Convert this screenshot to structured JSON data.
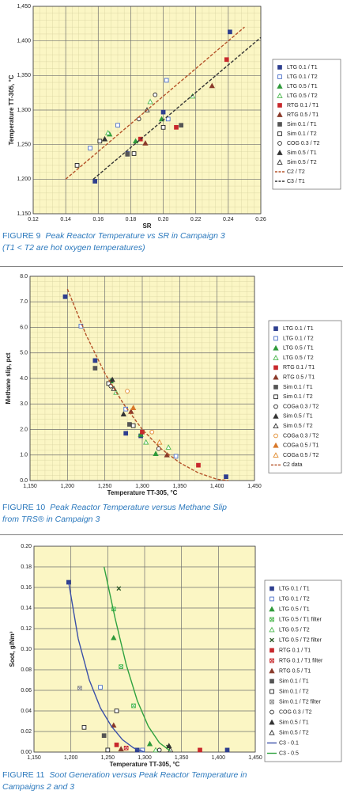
{
  "chart_data": [
    {
      "type": "scatter",
      "figure_label": "FIGURE 9",
      "caption_lines": [
        "Peak Reactor Temperature vs SR in Campaign 3",
        "(T1 < T2 are hot oxygen temperatures)"
      ],
      "x_label": "SR",
      "y_label": "Temperature TT-305, °C",
      "xlim": [
        0.12,
        0.26
      ],
      "xticks": [
        0.12,
        0.14,
        0.16,
        0.18,
        {
          "value": 0.2,
          "label": "0.20"
        },
        0.22,
        0.24,
        0.26
      ],
      "ylim": [
        1150,
        1450
      ],
      "yticks": [
        {
          "value": 1150,
          "label": "1,150"
        },
        {
          "value": 1200,
          "label": "1,200"
        },
        {
          "value": 1250,
          "label": "1,250"
        },
        {
          "value": 1300,
          "label": "1,300"
        },
        {
          "value": 1350,
          "label": "1,350"
        },
        {
          "value": 1400,
          "label": "1,400"
        },
        {
          "value": 1450,
          "label": "1,450"
        }
      ],
      "grid": true,
      "minor_grid": true,
      "legend": "right",
      "series": [
        {
          "name": "LTG 0.1 / T1",
          "color": "#2e3f8f",
          "marker": "square",
          "filled": true,
          "x": [
            0.241,
            0.158,
            0.178,
            0.2
          ],
          "values": [
            1413,
            1197,
            1237,
            1297
          ]
        },
        {
          "name": "LTG 0.1 / T2",
          "color": "#4a6fc9",
          "marker": "square",
          "filled": false,
          "x": [
            0.155,
            0.172,
            0.202,
            0.203
          ],
          "values": [
            1245,
            1278,
            1343,
            1287
          ]
        },
        {
          "name": "LTG 0.5 / T1",
          "color": "#2f9a3a",
          "marker": "triangle",
          "filled": true,
          "x": [
            0.167,
            0.183,
            0.199
          ],
          "values": [
            1265,
            1255,
            1287
          ]
        },
        {
          "name": "LTG 0.5 / T2",
          "color": "#4cb84f",
          "marker": "triangle",
          "filled": false,
          "x": [
            0.166,
            0.192,
            0.218
          ],
          "values": [
            1267,
            1312,
            1320
          ]
        },
        {
          "name": "RTG 0.1 / T1",
          "color": "#c8282c",
          "marker": "square",
          "filled": true,
          "x": [
            0.239,
            0.186,
            0.208
          ],
          "values": [
            1373,
            1258,
            1275
          ]
        },
        {
          "name": "RTG 0.5 / T1",
          "color": "#8a3a2a",
          "marker": "triangle",
          "filled": true,
          "x": [
            0.23,
            0.189
          ],
          "values": [
            1335,
            1252
          ]
        },
        {
          "name": "Sim 0.1 / T1",
          "color": "#555555",
          "marker": "square",
          "filled": true,
          "x": [
            0.211,
            0.178
          ],
          "values": [
            1278,
            1236
          ]
        },
        {
          "name": "Sim 0.1 / T2",
          "color": "#222222",
          "marker": "square",
          "filled": false,
          "x": [
            0.147,
            0.161,
            0.2,
            0.182
          ],
          "values": [
            1220,
            1255,
            1275,
            1237
          ]
        },
        {
          "name": "COG 0.3 / T2",
          "color": "#222222",
          "marker": "circle",
          "filled": false,
          "x": [
            0.185,
            0.195
          ],
          "values": [
            1287,
            1322
          ]
        },
        {
          "name": "Sim 0.5 / T1",
          "color": "#333333",
          "marker": "triangle",
          "filled": true,
          "x": [
            0.164
          ],
          "values": [
            1258
          ]
        },
        {
          "name": "Sim 0.5 / T2",
          "color": "#333333",
          "marker": "triangle",
          "filled": false,
          "x": [
            0.19
          ],
          "values": [
            1300
          ]
        },
        {
          "name": "C2 / T2",
          "color": "#b5532a",
          "line_style": "dashed",
          "x": [
            0.14,
            0.25
          ],
          "values": [
            1200,
            1420
          ]
        },
        {
          "name": "C3 / T1",
          "color": "#333333",
          "line_style": "dashed",
          "x": [
            0.157,
            0.26
          ],
          "values": [
            1200,
            1405
          ]
        }
      ]
    },
    {
      "type": "scatter",
      "figure_label": "FIGURE 10",
      "caption_lines": [
        "Peak Reactor Temperature versus Methane Slip",
        "from TRS® in Campaign 3"
      ],
      "x_label": "Temperature TT-305, °C",
      "y_label": "Methane slip, pct",
      "xlim": [
        1150,
        1450
      ],
      "xticks": [
        {
          "value": 1150,
          "label": "1,150"
        },
        {
          "value": 1200,
          "label": "1,200"
        },
        {
          "value": 1250,
          "label": "1,250"
        },
        {
          "value": 1300,
          "label": "1,300"
        },
        {
          "value": 1350,
          "label": "1,350"
        },
        {
          "value": 1400,
          "label": "1,400"
        },
        {
          "value": 1450,
          "label": "1,450"
        }
      ],
      "ylim": [
        0,
        8
      ],
      "yticks": [
        {
          "value": 0,
          "label": "0.0"
        },
        {
          "value": 1,
          "label": "1.0"
        },
        {
          "value": 2,
          "label": "2.0"
        },
        {
          "value": 3,
          "label": "3.0"
        },
        {
          "value": 4,
          "label": "4.0"
        },
        {
          "value": 5,
          "label": "5.0"
        },
        {
          "value": 6,
          "label": "6.0"
        },
        {
          "value": 7,
          "label": "7.0"
        },
        {
          "value": 8,
          "label": "8.0"
        }
      ],
      "grid": true,
      "minor_grid": true,
      "legend": "right",
      "series": [
        {
          "name": "LTG 0.1 / T1",
          "color": "#2e3f8f",
          "marker": "square",
          "filled": true,
          "x": [
            1197,
            1412,
            1298,
            1237,
            1278
          ],
          "values": [
            7.2,
            0.15,
            1.75,
            4.7,
            1.85
          ]
        },
        {
          "name": "LTG 0.1 / T2",
          "color": "#4a6fc9",
          "marker": "square",
          "filled": false,
          "x": [
            1218,
            1278,
            1345
          ],
          "values": [
            6.05,
            2.8,
            0.95
          ]
        },
        {
          "name": "LTG 0.5 / T1",
          "color": "#2f9a3a",
          "marker": "triangle",
          "filled": true,
          "x": [
            1258,
            1318,
            1298
          ],
          "values": [
            3.9,
            1.05,
            1.8
          ]
        },
        {
          "name": "LTG 0.5 / T2",
          "color": "#4cb84f",
          "marker": "triangle",
          "filled": false,
          "x": [
            1265,
            1305,
            1335
          ],
          "values": [
            3.45,
            1.5,
            1.3
          ]
        },
        {
          "name": "RTG 0.1 / T1",
          "color": "#c8282c",
          "marker": "square",
          "filled": true,
          "x": [
            1375,
            1300
          ],
          "values": [
            0.6,
            1.9
          ]
        },
        {
          "name": "RTG 0.5 / T1",
          "color": "#8a3a2a",
          "marker": "triangle",
          "filled": true,
          "x": [
            1285,
            1333
          ],
          "values": [
            2.7,
            1.0
          ]
        },
        {
          "name": "Sim 0.1 / T1",
          "color": "#555555",
          "marker": "square",
          "filled": true,
          "x": [
            1237,
            1283
          ],
          "values": [
            4.4,
            2.2
          ]
        },
        {
          "name": "Sim 0.1 / T2",
          "color": "#222222",
          "marker": "square",
          "filled": false,
          "x": [
            1255,
            1288
          ],
          "values": [
            3.8,
            2.15
          ]
        },
        {
          "name": "COGa 0.3 / T2",
          "color": "#222222",
          "marker": "circle",
          "filled": false,
          "x": [
            1258,
            1322
          ],
          "values": [
            3.7,
            1.25
          ]
        },
        {
          "name": "Sim 0.5 / T1",
          "color": "#333333",
          "marker": "triangle",
          "filled": true,
          "x": [
            1260,
            1275
          ],
          "values": [
            3.95,
            2.6
          ]
        },
        {
          "name": "Sim 0.5 / T2",
          "color": "#333333",
          "marker": "triangle",
          "filled": false,
          "x": [
            1262
          ],
          "values": [
            3.6
          ]
        },
        {
          "name": "COGa 0.3 / T2",
          "color": "#e0892a",
          "marker": "circle",
          "filled": false,
          "x": [
            1280,
            1313
          ],
          "values": [
            3.5,
            1.9
          ]
        },
        {
          "name": "COGa 0.5 / T1",
          "color": "#d8782a",
          "marker": "triangle",
          "filled": true,
          "x": [
            1288
          ],
          "values": [
            2.85
          ]
        },
        {
          "name": "COGa 0.5 / T2",
          "color": "#e0892a",
          "marker": "triangle",
          "filled": false,
          "x": [
            1323
          ],
          "values": [
            1.5
          ]
        },
        {
          "name": "C2 data",
          "color": "#b5532a",
          "line_style": "dashed",
          "x": [
            1200,
            1225,
            1250,
            1275,
            1300,
            1325,
            1350,
            1375,
            1400,
            1415
          ],
          "values": [
            7.5,
            5.7,
            4.2,
            3.0,
            2.0,
            1.25,
            0.7,
            0.3,
            0.05,
            0
          ]
        }
      ]
    },
    {
      "type": "scatter",
      "figure_label": "FIGURE 11",
      "caption_lines": [
        "Soot Generation versus Peak Reactor Temperature in",
        "Campaigns 2 and 3"
      ],
      "x_label": "Temperature TT-305, °C",
      "y_label": "Soot, g/Nm³",
      "xlim": [
        1150,
        1450
      ],
      "xticks": [
        {
          "value": 1150,
          "label": "1,150"
        },
        {
          "value": 1200,
          "label": "1,200"
        },
        {
          "value": 1250,
          "label": "1,250"
        },
        {
          "value": 1300,
          "label": "1,300"
        },
        {
          "value": 1350,
          "label": "1,350"
        },
        {
          "value": 1400,
          "label": "1,400"
        },
        {
          "value": 1450,
          "label": "1,450"
        }
      ],
      "ylim": [
        0,
        0.2
      ],
      "yticks": [
        {
          "value": 0,
          "label": "0.00"
        },
        0.02,
        0.04,
        0.06,
        0.08,
        {
          "value": 0.1,
          "label": "0.10"
        },
        0.12,
        0.14,
        0.16,
        0.18,
        {
          "value": 0.2,
          "label": "0.20"
        }
      ],
      "grid": true,
      "minor_grid": false,
      "legend": "right",
      "series": [
        {
          "name": "LTG 0.1 / T1",
          "color": "#2e3f8f",
          "marker": "square",
          "filled": true,
          "x": [
            1197,
            1412,
            1290
          ],
          "values": [
            0.165,
            0.002,
            0.002
          ]
        },
        {
          "name": "LTG 0.1 / T2",
          "color": "#4a6fc9",
          "marker": "square",
          "filled": false,
          "x": [
            1240,
            1297
          ],
          "values": [
            0.063,
            0.002
          ]
        },
        {
          "name": "LTG 0.5 / T1",
          "color": "#2f9a3a",
          "marker": "triangle",
          "filled": true,
          "x": [
            1258,
            1307
          ],
          "values": [
            0.111,
            0.008
          ]
        },
        {
          "name": "LTG 0.5 / T1 filter",
          "color": "#4cb84f",
          "marker": "xsquare",
          "filled": false,
          "x": [
            1258,
            1285,
            1268
          ],
          "values": [
            0.139,
            0.045,
            0.083
          ]
        },
        {
          "name": "LTG 0.5 / T2",
          "color": "#4cb84f",
          "marker": "triangle",
          "filled": false,
          "x": [
            1315
          ],
          "values": [
            0.002
          ]
        },
        {
          "name": "LTG 0.5 / T2 filter",
          "color": "#2f5a2a",
          "marker": "x",
          "filled": true,
          "x": [
            1265,
            1332
          ],
          "values": [
            0.159,
            0.005
          ]
        },
        {
          "name": "RTG 0.1 / T1",
          "color": "#c8282c",
          "marker": "square",
          "filled": true,
          "x": [
            1262,
            1375
          ],
          "values": [
            0.007,
            0.002
          ]
        },
        {
          "name": "RTG 0.1 / T1 filter",
          "color": "#c8282c",
          "marker": "xsquare",
          "filled": false,
          "x": [
            1275
          ],
          "values": [
            0.004
          ]
        },
        {
          "name": "RTG 0.5 / T1",
          "color": "#8a3a2a",
          "marker": "triangle",
          "filled": true,
          "x": [
            1258,
            1268
          ],
          "values": [
            0.026,
            0.003
          ]
        },
        {
          "name": "Sim 0.1 / T1",
          "color": "#555555",
          "marker": "square",
          "filled": true,
          "x": [
            1245
          ],
          "values": [
            0.016
          ]
        },
        {
          "name": "Sim 0.1 / T2",
          "color": "#222222",
          "marker": "square",
          "filled": false,
          "x": [
            1218,
            1262,
            1250
          ],
          "values": [
            0.024,
            0.04,
            0.002
          ]
        },
        {
          "name": "Sim 0.1 / T2 filter",
          "color": "#888888",
          "marker": "xsquare",
          "filled": false,
          "x": [
            1212
          ],
          "values": [
            0.062
          ]
        },
        {
          "name": "COG 0.3 / T2",
          "color": "#222222",
          "marker": "circle",
          "filled": false,
          "x": [
            1320
          ],
          "values": [
            0.002
          ]
        },
        {
          "name": "Sim 0.5 / T1",
          "color": "#333333",
          "marker": "triangle",
          "filled": true,
          "x": [
            1333
          ],
          "values": [
            0.006
          ]
        },
        {
          "name": "Sim 0.5 / T2",
          "color": "#333333",
          "marker": "triangle",
          "filled": false,
          "x": [
            1335
          ],
          "values": [
            0.002
          ]
        },
        {
          "name": "C3 - 0.1",
          "color": "#3a4fa8",
          "line_style": "solid",
          "x": [
            1197,
            1210,
            1225,
            1240,
            1255,
            1270,
            1285,
            1300
          ],
          "values": [
            0.165,
            0.11,
            0.07,
            0.043,
            0.025,
            0.012,
            0.004,
            0
          ]
        },
        {
          "name": "C3 - 0.5",
          "color": "#2fa23f",
          "line_style": "solid",
          "x": [
            1245,
            1260,
            1275,
            1290,
            1305,
            1320,
            1335
          ],
          "values": [
            0.18,
            0.13,
            0.085,
            0.05,
            0.025,
            0.009,
            0.001
          ]
        }
      ]
    }
  ]
}
